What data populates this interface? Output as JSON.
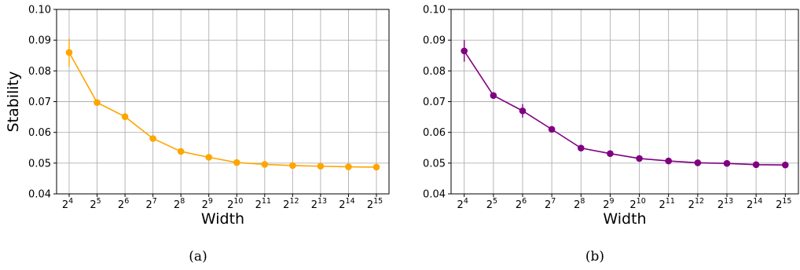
{
  "chart_data": [
    {
      "type": "line",
      "caption": "(a)",
      "xlabel": "Width",
      "ylabel": "Stability",
      "x_scale": "log2",
      "x": [
        16,
        32,
        64,
        128,
        256,
        512,
        1024,
        2048,
        4096,
        8192,
        16384,
        32768
      ],
      "x_tick_exponents": [
        "4",
        "5",
        "6",
        "7",
        "8",
        "9",
        "10",
        "11",
        "12",
        "13",
        "14",
        "15"
      ],
      "ylim": [
        0.04,
        0.1
      ],
      "yticks": [
        "0.04",
        "0.05",
        "0.06",
        "0.07",
        "0.08",
        "0.09",
        "0.10"
      ],
      "grid": true,
      "color": "#ffa500",
      "series": [
        {
          "values": [
            0.086,
            0.0697,
            0.0651,
            0.058,
            0.0538,
            0.0519,
            0.0502,
            0.0496,
            0.0492,
            0.049,
            0.0488,
            0.0487
          ],
          "error": [
            0.0045,
            0.0008,
            0.0012,
            0.0006,
            0.0004,
            0.0003,
            0.0003,
            0.0003,
            0.0002,
            0.0002,
            0.0002,
            0.0002
          ]
        }
      ]
    },
    {
      "type": "line",
      "caption": "(b)",
      "xlabel": "Width",
      "ylabel": "",
      "x_scale": "log2",
      "x": [
        16,
        32,
        64,
        128,
        256,
        512,
        1024,
        2048,
        4096,
        8192,
        16384,
        32768
      ],
      "x_tick_exponents": [
        "4",
        "5",
        "6",
        "7",
        "8",
        "9",
        "10",
        "11",
        "12",
        "13",
        "14",
        "15"
      ],
      "ylim": [
        0.04,
        0.1
      ],
      "yticks": [
        "0.04",
        "0.05",
        "0.06",
        "0.07",
        "0.08",
        "0.09",
        "0.10"
      ],
      "grid": true,
      "color": "#800080",
      "series": [
        {
          "values": [
            0.0865,
            0.072,
            0.067,
            0.061,
            0.0549,
            0.0531,
            0.0515,
            0.0507,
            0.0501,
            0.0499,
            0.0495,
            0.0494
          ],
          "error": [
            0.0035,
            0.0008,
            0.0022,
            0.0006,
            0.0004,
            0.0003,
            0.0004,
            0.0003,
            0.0002,
            0.0002,
            0.0002,
            0.0002
          ]
        }
      ]
    }
  ]
}
